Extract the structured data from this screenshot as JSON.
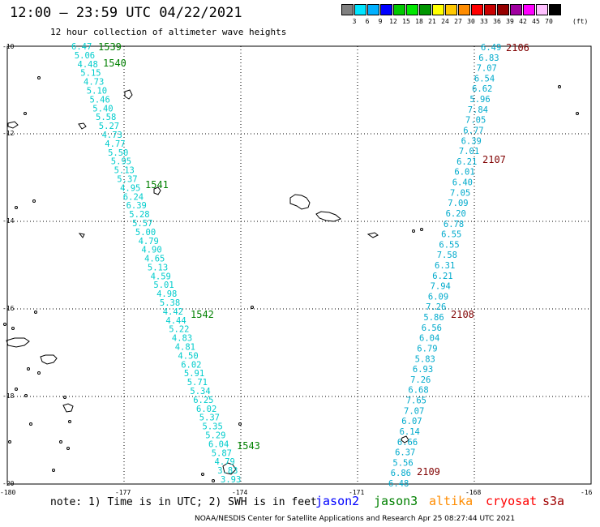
{
  "title": "12:00 – 23:59 UTC 04/22/2021",
  "subtitle": "12 hour collection of altimeter wave heights",
  "scale": {
    "colors": [
      "#808080",
      "#00e5ff",
      "#00b0ff",
      "#0000ff",
      "#00c800",
      "#00e600",
      "#009600",
      "#ffff00",
      "#ffc800",
      "#ff8c00",
      "#ff0000",
      "#c80000",
      "#960000",
      "#a000a0",
      "#ff00ff",
      "#ffc0ff",
      "#000000"
    ],
    "labels": [
      "3",
      "6",
      "9",
      "12",
      "15",
      "18",
      "21",
      "24",
      "27",
      "30",
      "33",
      "36",
      "39",
      "42",
      "45",
      "70"
    ],
    "unit": "(ft)"
  },
  "axes": {
    "lat_labels": [
      "-10",
      "-12",
      "-14",
      "-16",
      "-18",
      "-20"
    ],
    "lon_labels": [
      "-180",
      "-177",
      "-174",
      "-171",
      "-168",
      "-16"
    ]
  },
  "track_west": {
    "color": "#00cccc",
    "values": [
      "6.47",
      "5.06",
      "4.48",
      "5.15",
      "4.73",
      "5.10",
      "5.46",
      "5.40",
      "5.58",
      "5.27",
      "4.73",
      "4.77",
      "5.50",
      "5.95",
      "5.13",
      "5.37",
      "4.95",
      "6.24",
      "6.39",
      "5.28",
      "5.57",
      "5.00",
      "4.79",
      "4.90",
      "4.65",
      "5.13",
      "4.59",
      "5.01",
      "4.98",
      "5.38",
      "4.42",
      "4.44",
      "5.22",
      "4.83",
      "4.81",
      "4.50",
      "6.02",
      "5.91",
      "5.71",
      "5.34",
      "6.25",
      "6.02",
      "5.37",
      "5.35",
      "5.29",
      "6.04",
      "5.87",
      "4.79",
      "3.83",
      "3.93"
    ],
    "passes": [
      "1539",
      "1540",
      "1541",
      "1542",
      "1543"
    ],
    "pass_color": "#008000"
  },
  "track_east": {
    "color": "#00aacc",
    "values": [
      "6.49",
      "6.83",
      "7.07",
      "6.54",
      "6.62",
      "5.96",
      "7.84",
      "7.05",
      "6.77",
      "6.39",
      "7.01",
      "6.21",
      "6.01",
      "6.40",
      "7.05",
      "7.09",
      "6.20",
      "6.78",
      "6.55",
      "6.55",
      "7.58",
      "6.31",
      "6.21",
      "7.94",
      "6.09",
      "7.26",
      "5.86",
      "6.56",
      "6.04",
      "6.79",
      "5.83",
      "6.93",
      "7.26",
      "6.68",
      "7.65",
      "7.07",
      "6.07",
      "6.14",
      "6.66",
      "6.37",
      "5.56",
      "6.86",
      "6.48"
    ],
    "passes": [
      "2106",
      "2107",
      "2108",
      "2109"
    ],
    "pass_color": "#800000"
  },
  "note": "note:  1) Time is in UTC; 2) SWH is in feet",
  "satellites": [
    {
      "name": "jason2",
      "color": "#0000ff"
    },
    {
      "name": "jason3",
      "color": "#008000"
    },
    {
      "name": "altika",
      "color": "#ff8c00"
    },
    {
      "name": "cryosat",
      "color": "#ff0000"
    },
    {
      "name": "s3a",
      "color": "#a00000"
    }
  ],
  "footer": "NOAA/NESDIS Center for Satellite Applications and Research   Apr 25 08:27:44 UTC 2021"
}
